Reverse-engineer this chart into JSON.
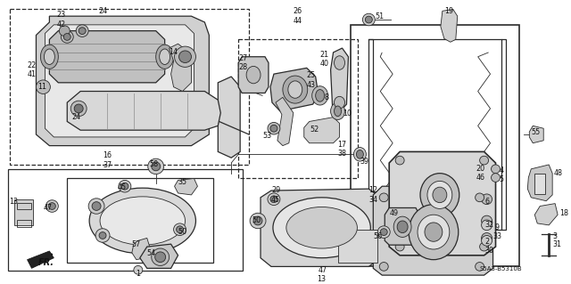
{
  "figsize": [
    6.4,
    3.19
  ],
  "dpi": 100,
  "bg": "#ffffff",
  "image_code": "S5A3-B5310B",
  "label_fs": 5.8,
  "line_color": "#2a2a2a",
  "fill_light": "#e8e8e8",
  "fill_mid": "#cccccc",
  "fill_dark": "#aaaaaa"
}
